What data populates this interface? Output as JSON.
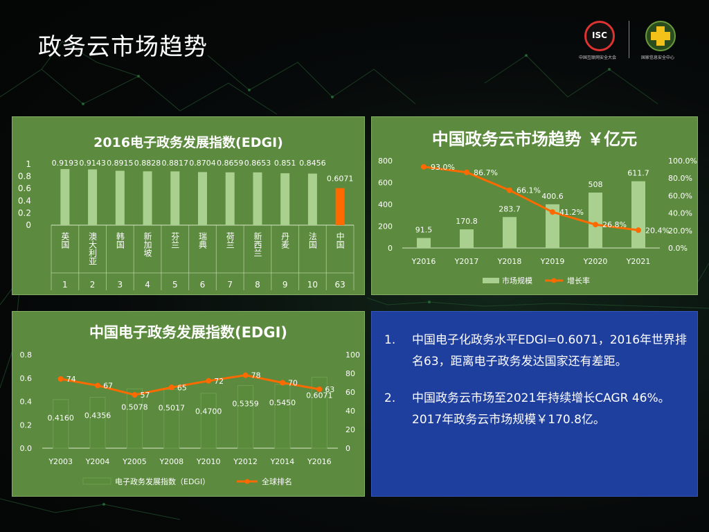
{
  "page": {
    "title": "政务云市场趋势",
    "logos": {
      "isc_mark": "ISC",
      "isc_caption": "中国互联网安全大会",
      "right_caption": "国家信息安全中心"
    }
  },
  "colors": {
    "panel_green": "#5c8a3e",
    "bar_light": "#a9d08e",
    "highlight_orange": "#ff6a00",
    "notes_blue": "#1f3f9e"
  },
  "chart_data": [
    {
      "type": "bar",
      "title": "2016电子政务发展指数(EDGI)",
      "categories": [
        "英国",
        "澳大利亚",
        "韩国",
        "新加坡",
        "芬兰",
        "瑞典",
        "荷兰",
        "新西兰",
        "丹麦",
        "法国",
        "中国"
      ],
      "ranks": [
        "1",
        "2",
        "3",
        "4",
        "5",
        "6",
        "7",
        "8",
        "9",
        "10",
        "63"
      ],
      "values": [
        0.9193,
        0.9143,
        0.8915,
        0.8828,
        0.8817,
        0.8704,
        0.8659,
        0.8653,
        0.851,
        0.8456,
        0.6071
      ],
      "value_labels": [
        "0.9193",
        "0.9143",
        "0.8915",
        "0.8828",
        "0.8817",
        "0.8704",
        "0.8659",
        "0.8653",
        "0.851",
        "0.8456",
        "0.6071"
      ],
      "highlight_index": 10,
      "ylim": [
        0,
        1
      ],
      "yticks": [
        "0",
        "0.2",
        "0.4",
        "0.6",
        "0.8",
        "1"
      ],
      "legend": "none"
    },
    {
      "type": "bar+line",
      "title": "中国政务云市场趋势 ￥亿元",
      "categories": [
        "Y2016",
        "Y2017",
        "Y2018",
        "Y2019",
        "Y2020",
        "Y2021"
      ],
      "series": [
        {
          "name": "市场规模",
          "type": "bar",
          "values": [
            91.5,
            170.8,
            283.7,
            400.6,
            508,
            611.7
          ],
          "labels": [
            "91.5",
            "170.8",
            "283.7",
            "400.6",
            "508",
            "611.7"
          ]
        },
        {
          "name": "增长率",
          "type": "line",
          "axis": "right",
          "values": [
            93.0,
            86.7,
            66.1,
            41.2,
            26.8,
            20.4
          ],
          "labels": [
            "93.0%",
            "86.7%",
            "66.1%",
            "41.2%",
            "26.8%",
            "20.4%"
          ]
        }
      ],
      "ylim": [
        0,
        800
      ],
      "yticks": [
        "0",
        "200",
        "400",
        "600",
        "800"
      ],
      "y2lim": [
        0,
        100
      ],
      "y2ticks": [
        "0.0%",
        "20.0%",
        "40.0%",
        "60.0%",
        "80.0%",
        "100.0%"
      ],
      "legend": "bottom"
    },
    {
      "type": "bar+line",
      "title": "中国电子政务发展指数(EDGI)",
      "categories": [
        "Y2003",
        "Y2004",
        "Y2005",
        "Y2008",
        "Y2010",
        "Y2012",
        "Y2014",
        "Y2016"
      ],
      "series": [
        {
          "name": "电子政务发展指数（EDGI）",
          "type": "bar",
          "values": [
            0.416,
            0.4356,
            0.5078,
            0.5017,
            0.47,
            0.5359,
            0.545,
            0.6071
          ],
          "labels": [
            "0.4160",
            "0.4356",
            "0.5078",
            "0.5017",
            "0.4700",
            "0.5359",
            "0.5450",
            "0.6071"
          ]
        },
        {
          "name": "全球排名",
          "type": "line",
          "axis": "right",
          "values": [
            74,
            67,
            57,
            65,
            72,
            78,
            70,
            63
          ],
          "labels": [
            "74",
            "67",
            "57",
            "65",
            "72",
            "78",
            "70",
            "63"
          ]
        }
      ],
      "ylim": [
        0,
        0.8
      ],
      "yticks": [
        "0.0",
        "0.2",
        "0.4",
        "0.6",
        "0.8"
      ],
      "y2lim": [
        0,
        100
      ],
      "y2ticks": [
        "0",
        "20",
        "40",
        "60",
        "80",
        "100"
      ],
      "legend": "bottom"
    }
  ],
  "notes": [
    {
      "num": "1.",
      "text": "中国电子化政务水平EDGI=0.6071，2016年世界排名63，距离电子政务发达国家还有差距。"
    },
    {
      "num": "2.",
      "text": "中国政务云市场至2021年持续增长CAGR 46%。2017年政务云市场规模￥170.8亿。"
    }
  ]
}
